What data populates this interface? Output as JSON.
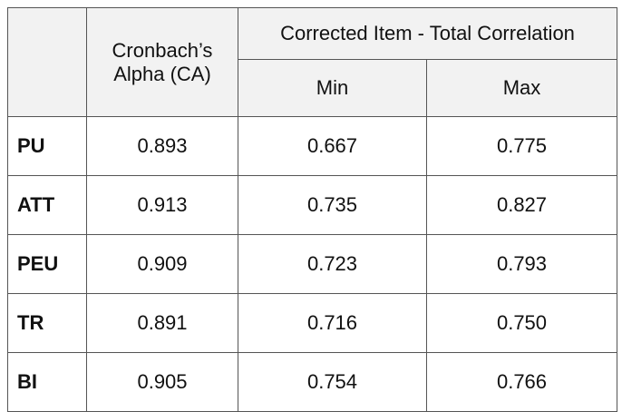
{
  "table": {
    "headers": {
      "alpha": "Cronbach’s Alpha (CA)",
      "group": "Corrected Item - Total Correlation",
      "min": "Min",
      "max": "Max"
    },
    "rows": [
      [
        "PU",
        "0.893",
        "0.667",
        "0.775"
      ],
      [
        "ATT",
        "0.913",
        "0.735",
        "0.827"
      ],
      [
        "PEU",
        "0.909",
        "0.723",
        "0.793"
      ],
      [
        "TR",
        "0.891",
        "0.716",
        "0.750"
      ],
      [
        "BI",
        "0.905",
        "0.754",
        "0.766"
      ]
    ]
  }
}
